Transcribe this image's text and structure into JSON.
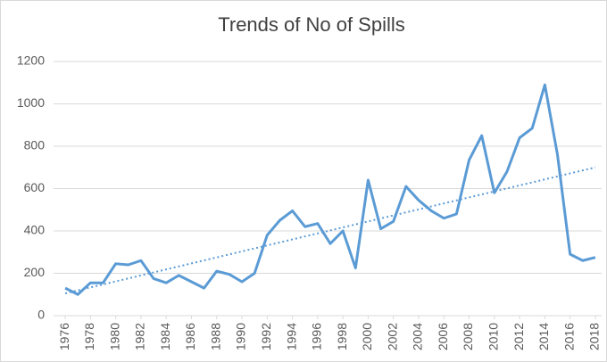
{
  "chart_data": {
    "type": "line",
    "title": "Trends of No of Spills",
    "x": [
      1976,
      1977,
      1978,
      1979,
      1980,
      1981,
      1982,
      1983,
      1984,
      1985,
      1986,
      1987,
      1988,
      1989,
      1990,
      1991,
      1992,
      1993,
      1994,
      1995,
      1996,
      1997,
      1998,
      1999,
      2000,
      2001,
      2002,
      2003,
      2004,
      2005,
      2006,
      2007,
      2008,
      2009,
      2010,
      2011,
      2012,
      2013,
      2014,
      2015,
      2016,
      2017,
      2018
    ],
    "series": [
      {
        "color": "#5b9bd5",
        "values": [
          130,
          100,
          155,
          155,
          245,
          240,
          260,
          175,
          155,
          190,
          160,
          130,
          210,
          195,
          160,
          200,
          380,
          450,
          495,
          420,
          435,
          340,
          400,
          225,
          640,
          410,
          445,
          610,
          545,
          495,
          460,
          480,
          735,
          850,
          580,
          680,
          840,
          885,
          1090,
          760,
          290,
          260,
          275
        ]
      }
    ],
    "trendline": {
      "x": [
        1976,
        2018
      ],
      "values": [
        105,
        700
      ],
      "style": "dotted"
    },
    "xlim": [
      1975.5,
      2018.5
    ],
    "xticks": [
      1976,
      1978,
      1980,
      1982,
      1984,
      1986,
      1988,
      1990,
      1992,
      1994,
      1996,
      1998,
      2000,
      2002,
      2004,
      2006,
      2008,
      2010,
      2012,
      2014,
      2016,
      2018
    ],
    "ylim": [
      0,
      1200
    ],
    "yticks": [
      0,
      200,
      400,
      600,
      800,
      1000,
      1200
    ],
    "grid": true
  }
}
